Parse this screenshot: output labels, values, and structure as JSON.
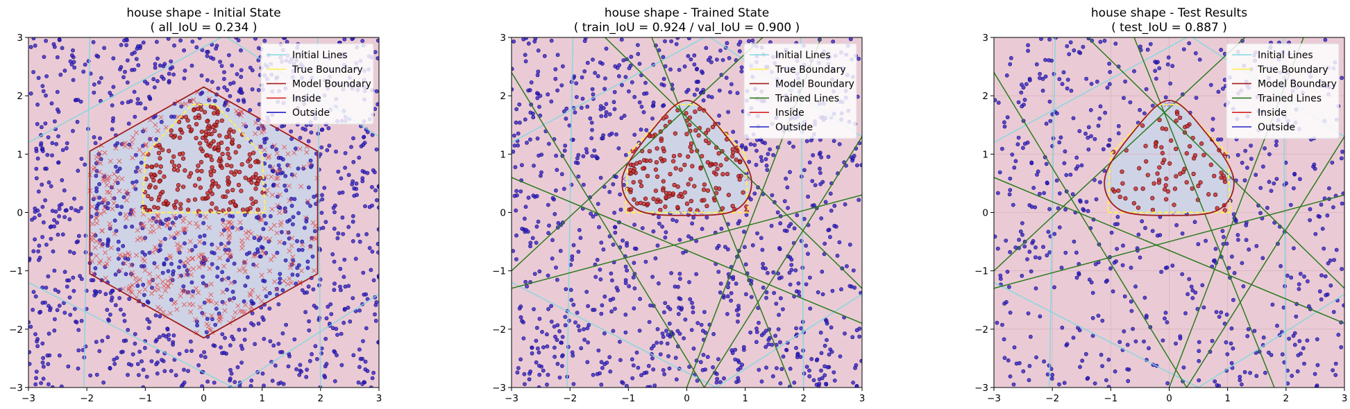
{
  "chart_data": [
    {
      "type": "scatter",
      "title_line1": "house shape - Initial State",
      "title_line2": "( all_IoU = 0.234 )",
      "xlim": [
        -3,
        3
      ],
      "ylim": [
        -3,
        3
      ],
      "xticks": [
        -3,
        -2,
        -1,
        0,
        1,
        2,
        3
      ],
      "yticks": [
        -3,
        -2,
        -1,
        0,
        1,
        2,
        3
      ],
      "grid": false,
      "legend_position": "top-right",
      "legend": [
        "Initial Lines",
        "True Boundary",
        "Model Boundary",
        "Inside",
        "Outside"
      ],
      "true_boundary": [
        [
          -1.05,
          0
        ],
        [
          1.05,
          0
        ],
        [
          1.0,
          1.0
        ],
        [
          0.2,
          1.85
        ],
        [
          -0.2,
          1.85
        ],
        [
          -1.0,
          1.0
        ]
      ],
      "model_boundary_kind": "hexagon",
      "model_boundary": [
        [
          0,
          2.15
        ],
        [
          1.95,
          1.05
        ],
        [
          1.95,
          -1.05
        ],
        [
          0,
          -2.15
        ],
        [
          -1.95,
          -1.05
        ],
        [
          -1.95,
          1.05
        ]
      ],
      "initial_lines": [
        [
          [
            -2.05,
            -3
          ],
          [
            -1.95,
            3
          ]
        ],
        [
          [
            2.0,
            -3
          ],
          [
            1.95,
            3
          ]
        ],
        [
          [
            -3,
            -1.2
          ],
          [
            0.5,
            -3
          ]
        ],
        [
          [
            -3,
            1.2
          ],
          [
            0.3,
            3
          ]
        ],
        [
          [
            0.4,
            3
          ],
          [
            3,
            1.3
          ]
        ],
        [
          [
            0.5,
            -3
          ],
          [
            3,
            -1.4
          ]
        ]
      ],
      "trained_lines": [],
      "points": {
        "outside": 1150,
        "inside_correct": 240,
        "inside_wrong": 420,
        "seed": 11
      },
      "colors": {
        "background": "#eacbd5",
        "model_region": "#cfd3e6",
        "outside": "#2b1bc4",
        "inside": "#cc2a2a",
        "true_boundary": "#ffee55",
        "model_boundary": "#a01c1c",
        "initial_lines": "#7fd8df",
        "trained_lines": "#2a7a1e"
      }
    },
    {
      "type": "scatter",
      "title_line1": "house shape - Trained State",
      "title_line2": "( train_IoU = 0.924 / val_IoU = 0.900 )",
      "xlim": [
        -3,
        3
      ],
      "ylim": [
        -3,
        3
      ],
      "xticks": [
        -3,
        -2,
        -1,
        0,
        1,
        2,
        3
      ],
      "yticks": [
        -3,
        -2,
        -1,
        0,
        1,
        2,
        3
      ],
      "grid": false,
      "legend_position": "top-right",
      "legend": [
        "Initial Lines",
        "True Boundary",
        "Model Boundary",
        "Trained Lines",
        "Inside",
        "Outside"
      ],
      "true_boundary": [
        [
          -1.05,
          0
        ],
        [
          1.05,
          0
        ],
        [
          1.0,
          1.0
        ],
        [
          0.2,
          1.85
        ],
        [
          -0.2,
          1.85
        ],
        [
          -1.0,
          1.0
        ]
      ],
      "model_boundary_kind": "rounded",
      "model_boundary": [
        [
          0,
          -0.05
        ],
        [
          0.85,
          0.05
        ],
        [
          1.1,
          0.6
        ],
        [
          0.6,
          1.4
        ],
        [
          0,
          1.92
        ],
        [
          -0.6,
          1.4
        ],
        [
          -1.1,
          0.6
        ],
        [
          -0.85,
          0.05
        ]
      ],
      "initial_lines": [
        [
          [
            -2.05,
            -3
          ],
          [
            -1.95,
            3
          ]
        ],
        [
          [
            2.0,
            -3
          ],
          [
            1.95,
            3
          ]
        ],
        [
          [
            -3,
            -1.2
          ],
          [
            0.5,
            -3
          ]
        ],
        [
          [
            -3,
            1.2
          ],
          [
            0.3,
            3
          ]
        ],
        [
          [
            0.4,
            3
          ],
          [
            3,
            1.3
          ]
        ],
        [
          [
            0.5,
            -3
          ],
          [
            3,
            -1.4
          ]
        ]
      ],
      "trained_lines": [
        [
          [
            -3,
            -1.3
          ],
          [
            3,
            0.3
          ]
        ],
        [
          [
            -3,
            0.6
          ],
          [
            3,
            -1.9
          ]
        ],
        [
          [
            -3,
            2.4
          ],
          [
            0.3,
            -3
          ]
        ],
        [
          [
            -0.6,
            3
          ],
          [
            1.8,
            -3
          ]
        ],
        [
          [
            0.0,
            -3
          ],
          [
            2.3,
            3
          ]
        ],
        [
          [
            -3,
            -1.0
          ],
          [
            1.3,
            3
          ]
        ],
        [
          [
            0.3,
            -3
          ],
          [
            3,
            1.3
          ]
        ],
        [
          [
            -1.4,
            3
          ],
          [
            3,
            -1.3
          ]
        ]
      ],
      "points": {
        "outside": 1000,
        "inside_correct": 170,
        "inside_wrong": 6,
        "seed": 23
      },
      "colors": {
        "background": "#eacbd5",
        "model_region": "#cfd3e6",
        "outside": "#2b1bc4",
        "inside": "#cc2a2a",
        "true_boundary": "#ffee55",
        "model_boundary": "#a01c1c",
        "initial_lines": "#7fd8df",
        "trained_lines": "#2a7a1e"
      }
    },
    {
      "type": "scatter",
      "title_line1": "house shape - Test Results",
      "title_line2": "( test_IoU = 0.887 )",
      "xlim": [
        -3,
        3
      ],
      "ylim": [
        -3,
        3
      ],
      "xticks": [
        -3,
        -2,
        -1,
        0,
        1,
        2,
        3
      ],
      "yticks": [
        -3,
        -2,
        -1,
        0,
        1,
        2,
        3
      ],
      "grid": true,
      "legend_position": "top-right",
      "legend": [
        "Initial Lines",
        "True Boundary",
        "Model Boundary",
        "Trained Lines",
        "Inside",
        "Outside"
      ],
      "true_boundary": [
        [
          -1.05,
          0
        ],
        [
          1.05,
          0
        ],
        [
          1.0,
          1.0
        ],
        [
          0.2,
          1.85
        ],
        [
          -0.2,
          1.85
        ],
        [
          -1.0,
          1.0
        ]
      ],
      "model_boundary_kind": "rounded",
      "model_boundary": [
        [
          0,
          -0.05
        ],
        [
          0.85,
          0.05
        ],
        [
          1.1,
          0.6
        ],
        [
          0.6,
          1.4
        ],
        [
          0,
          1.92
        ],
        [
          -0.6,
          1.4
        ],
        [
          -1.1,
          0.6
        ],
        [
          -0.85,
          0.05
        ]
      ],
      "initial_lines": [
        [
          [
            -2.05,
            -3
          ],
          [
            -1.95,
            3
          ]
        ],
        [
          [
            2.0,
            -3
          ],
          [
            1.95,
            3
          ]
        ],
        [
          [
            -3,
            -1.2
          ],
          [
            0.5,
            -3
          ]
        ],
        [
          [
            -3,
            1.2
          ],
          [
            0.3,
            3
          ]
        ],
        [
          [
            0.4,
            3
          ],
          [
            3,
            1.3
          ]
        ],
        [
          [
            0.5,
            -3
          ],
          [
            3,
            -1.4
          ]
        ]
      ],
      "trained_lines": [
        [
          [
            -3,
            -1.3
          ],
          [
            3,
            0.3
          ]
        ],
        [
          [
            -3,
            0.6
          ],
          [
            3,
            -1.9
          ]
        ],
        [
          [
            -3,
            2.4
          ],
          [
            0.3,
            -3
          ]
        ],
        [
          [
            -0.6,
            3
          ],
          [
            1.8,
            -3
          ]
        ],
        [
          [
            0.0,
            -3
          ],
          [
            2.3,
            3
          ]
        ],
        [
          [
            -3,
            -1.0
          ],
          [
            1.3,
            3
          ]
        ],
        [
          [
            0.3,
            -3
          ],
          [
            3,
            1.3
          ]
        ],
        [
          [
            -1.4,
            3
          ],
          [
            3,
            -1.3
          ]
        ]
      ],
      "points": {
        "outside": 620,
        "inside_correct": 85,
        "inside_wrong": 4,
        "seed": 37
      },
      "colors": {
        "background": "#eacbd5",
        "model_region": "#cfd3e6",
        "outside": "#2b1bc4",
        "inside": "#cc2a2a",
        "true_boundary": "#ffee55",
        "model_boundary": "#a01c1c",
        "initial_lines": "#7fd8df",
        "trained_lines": "#2a7a1e"
      }
    }
  ]
}
